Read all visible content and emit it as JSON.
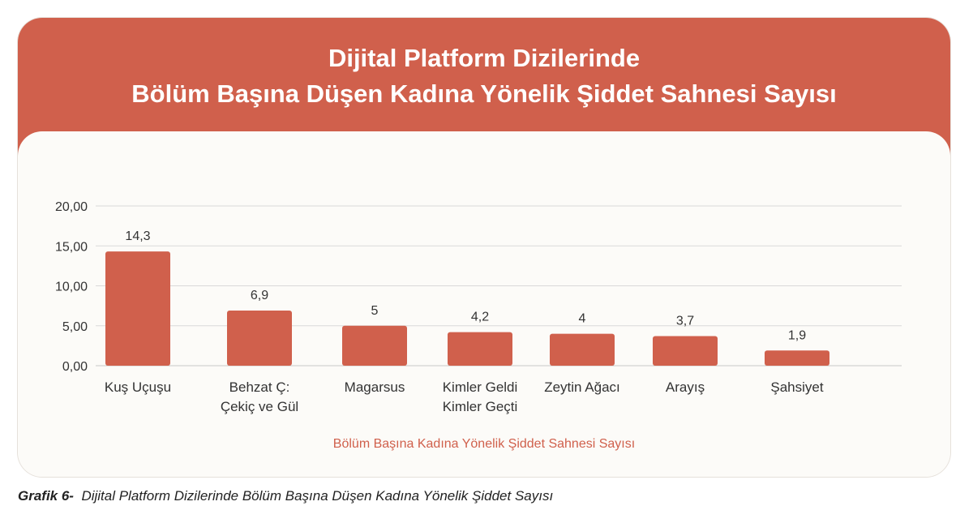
{
  "title_line1": "Dijital Platform Dizilerinde",
  "title_line2": "Bölüm Başına Düşen Kadına Yönelik Şiddet Sahnesi Sayısı",
  "caption_label": "Grafik 6-",
  "caption_text": "Dijital Platform Dizilerinde Bölüm Başına Düşen Kadına Yönelik Şiddet Sayısı",
  "colors": {
    "bar": "#d0604c",
    "header": "#d0604c",
    "grid": "#d9d9d9"
  },
  "chart_data": {
    "type": "bar",
    "categories": [
      [
        "Kuş Uçuşu"
      ],
      [
        "Behzat Ç:",
        "Çekiç ve Gül"
      ],
      [
        "Magarsus"
      ],
      [
        "Kimler Geldi",
        "Kimler Geçti"
      ],
      [
        "Zeytin Ağacı"
      ],
      [
        "Arayış"
      ],
      [
        "Şahsiyet"
      ]
    ],
    "values": [
      14.3,
      6.9,
      5,
      4.2,
      4,
      3.7,
      1.9
    ],
    "data_labels": [
      "14,3",
      "6,9",
      "5",
      "4,2",
      "4",
      "3,7",
      "1,9"
    ],
    "y_ticks": [
      "0,00",
      "5,00",
      "10,00",
      "15,00",
      "20,00"
    ],
    "y_tick_values": [
      0,
      5,
      10,
      15,
      20
    ],
    "ylim": [
      0,
      20
    ],
    "grid": true,
    "legend": "Bölüm Başına Kadına Yönelik Şiddet Sahnesi Sayısı",
    "legend_position": "bottom"
  }
}
